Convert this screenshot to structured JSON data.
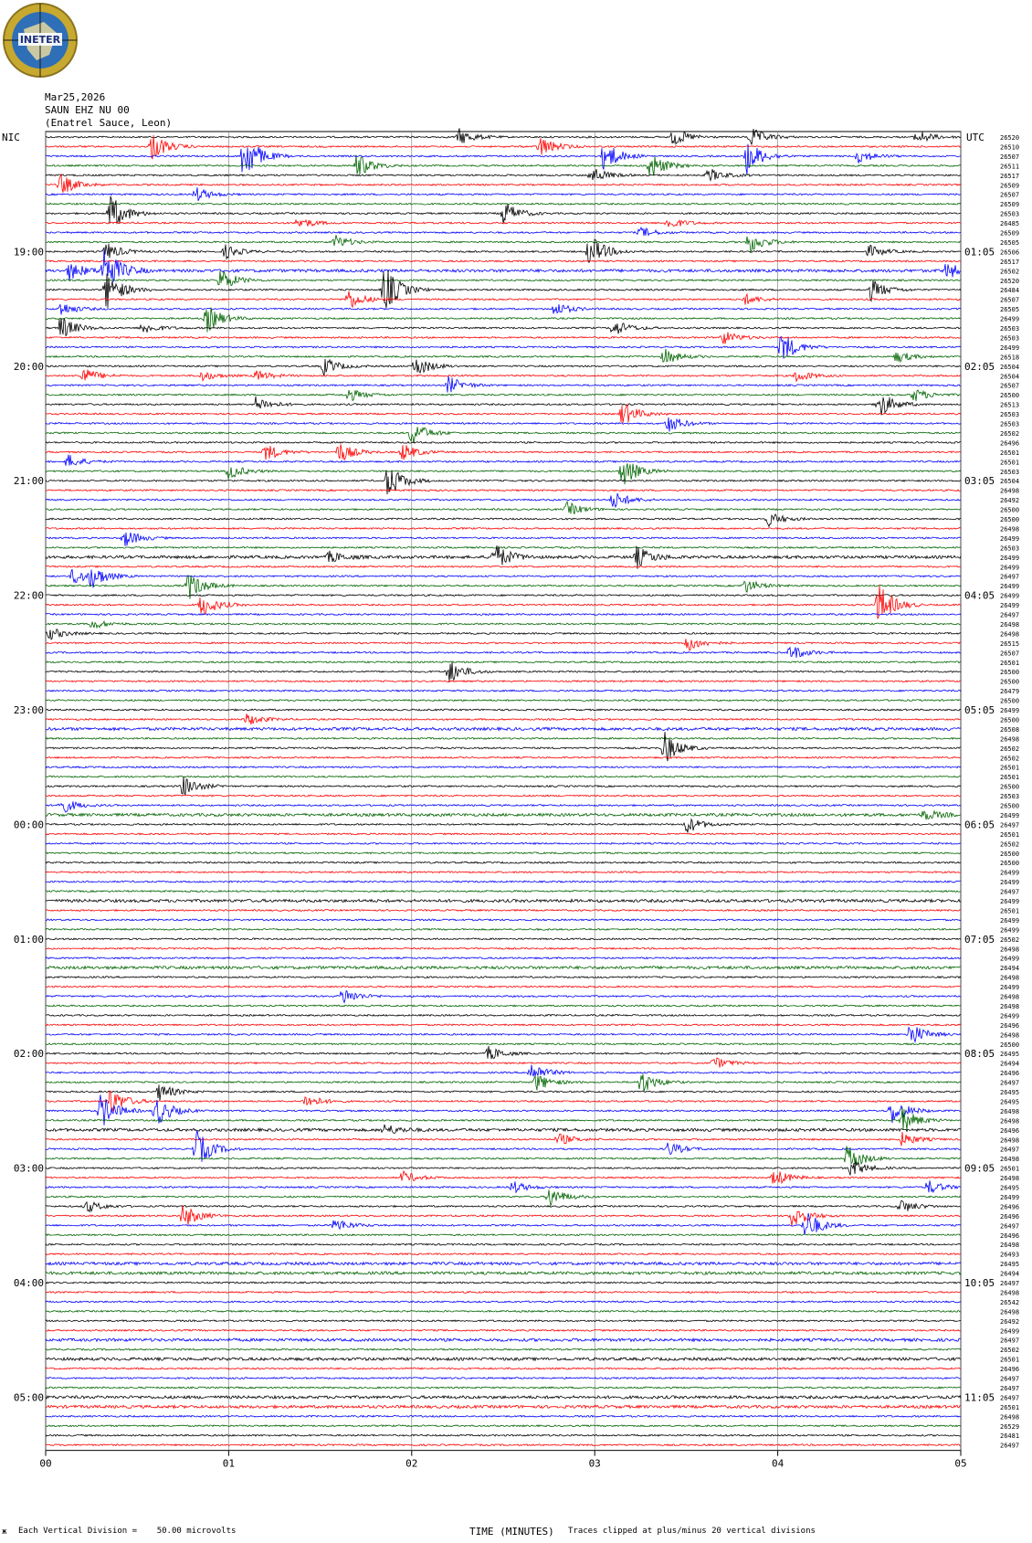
{
  "logo": {
    "text": "INETER",
    "colors": {
      "ring": "#c8a92f",
      "inner": "#2f6fb7",
      "land": "#e6d9a0"
    }
  },
  "header": {
    "date": "Mar25,2026",
    "station": "SAUN EHZ NU 00",
    "location": "(Enatrel Sauce, Leon)"
  },
  "chart_data": {
    "type": "line",
    "description_kind": "helicorder",
    "left_axis_label": "NIC",
    "right_axis_label": "UTC",
    "x": {
      "ticks": [
        "00",
        "01",
        "02",
        "03",
        "04",
        "05"
      ],
      "range": [
        0,
        5
      ],
      "label": "TIME (MINUTES)"
    },
    "left_time_labels": [
      "19:00",
      "20:00",
      "21:00",
      "22:00",
      "23:00",
      "00:00",
      "01:00",
      "02:00",
      "03:00",
      "04:00",
      "05:00"
    ],
    "right_time_labels": [
      "01:05",
      "02:05",
      "03:05",
      "04:05",
      "05:05",
      "06:05",
      "07:05",
      "08:05",
      "09:05",
      "10:05",
      "11:05"
    ],
    "trace_colors": [
      "#000000",
      "#ff0000",
      "#0000ff",
      "#006400"
    ],
    "trace_values": [
      "26520",
      "26510",
      "26507",
      "26511",
      "26517",
      "26509",
      "26507",
      "26509",
      "26503",
      "26485",
      "26509",
      "26505",
      "26506",
      "26517",
      "26502",
      "26520",
      "26484",
      "26507",
      "26505",
      "26499",
      "26503",
      "26503",
      "26499",
      "26518",
      "26504",
      "26504",
      "26507",
      "26500",
      "26513",
      "26503",
      "26503",
      "26502",
      "26496",
      "26501",
      "26501",
      "26503",
      "26504",
      "26498",
      "26492",
      "26500",
      "26500",
      "26498",
      "26499",
      "26503",
      "26499",
      "26499",
      "26497",
      "26499",
      "26499",
      "26499",
      "26497",
      "26498",
      "26498",
      "26515",
      "26507",
      "26501",
      "26500",
      "26500",
      "26479",
      "26500",
      "26499",
      "26500",
      "26508",
      "26498",
      "26502",
      "26502",
      "26501",
      "26501",
      "26500",
      "26503",
      "26500",
      "26499",
      "26497",
      "26501",
      "26502",
      "26500",
      "26500",
      "26499",
      "26499",
      "26497",
      "26499",
      "26501",
      "26499",
      "26499",
      "26502",
      "26498",
      "26499",
      "26494",
      "26498",
      "26499",
      "26498",
      "26498",
      "26499",
      "26496",
      "26498",
      "26500",
      "26495",
      "26494",
      "26496",
      "26497",
      "26495",
      "26495",
      "26498",
      "26498",
      "26496",
      "26498",
      "26497",
      "26498",
      "26501",
      "26498",
      "26495",
      "26499",
      "26496",
      "26496",
      "26497",
      "26496",
      "26498",
      "26493",
      "26495",
      "26494",
      "26497",
      "26498",
      "26542",
      "26498",
      "26492",
      "26499",
      "26497",
      "26502",
      "26501",
      "26496",
      "26497",
      "26497",
      "26497",
      "26501",
      "26498",
      "26529",
      "26481",
      "26497"
    ],
    "events": [
      {
        "line": 0,
        "t": 2.26,
        "amp": 9
      },
      {
        "line": 0,
        "t": 3.43,
        "amp": 10
      },
      {
        "line": 0,
        "t": 3.85,
        "amp": 11
      },
      {
        "line": 0,
        "t": 4.76,
        "amp": 8
      },
      {
        "line": 1,
        "t": 0.58,
        "amp": 16
      },
      {
        "line": 1,
        "t": 2.7,
        "amp": 12
      },
      {
        "line": 2,
        "t": 1.08,
        "amp": 30
      },
      {
        "line": 2,
        "t": 3.05,
        "amp": 18
      },
      {
        "line": 2,
        "t": 3.83,
        "amp": 20
      },
      {
        "line": 2,
        "t": 4.44,
        "amp": 8
      },
      {
        "line": 3,
        "t": 1.7,
        "amp": 14
      },
      {
        "line": 3,
        "t": 3.3,
        "amp": 16
      },
      {
        "line": 4,
        "t": 2.98,
        "amp": 10
      },
      {
        "line": 4,
        "t": 3.62,
        "amp": 8
      },
      {
        "line": 5,
        "t": 0.08,
        "amp": 12
      },
      {
        "line": 6,
        "t": 0.82,
        "amp": 8
      },
      {
        "line": 8,
        "t": 0.35,
        "amp": 22
      },
      {
        "line": 8,
        "t": 2.5,
        "amp": 14
      },
      {
        "line": 9,
        "t": 1.38,
        "amp": 7
      },
      {
        "line": 9,
        "t": 3.4,
        "amp": 7
      },
      {
        "line": 10,
        "t": 3.25,
        "amp": 6
      },
      {
        "line": 11,
        "t": 1.58,
        "amp": 8
      },
      {
        "line": 11,
        "t": 3.84,
        "amp": 13
      },
      {
        "line": 12,
        "t": 0.33,
        "amp": 10
      },
      {
        "line": 12,
        "t": 0.98,
        "amp": 8
      },
      {
        "line": 12,
        "t": 2.97,
        "amp": 20
      },
      {
        "line": 12,
        "t": 4.5,
        "amp": 7
      },
      {
        "line": 14,
        "t": 0.32,
        "amp": 28
      },
      {
        "line": 14,
        "t": 0.13,
        "amp": 10
      },
      {
        "line": 14,
        "t": 4.92,
        "amp": 9
      },
      {
        "line": 15,
        "t": 0.95,
        "amp": 14
      },
      {
        "line": 16,
        "t": 0.33,
        "amp": 22
      },
      {
        "line": 16,
        "t": 1.85,
        "amp": 28
      },
      {
        "line": 16,
        "t": 4.51,
        "amp": 12
      },
      {
        "line": 17,
        "t": 1.65,
        "amp": 12
      },
      {
        "line": 17,
        "t": 3.82,
        "amp": 6
      },
      {
        "line": 18,
        "t": 0.08,
        "amp": 8
      },
      {
        "line": 18,
        "t": 2.78,
        "amp": 8
      },
      {
        "line": 19,
        "t": 0.88,
        "amp": 16
      },
      {
        "line": 20,
        "t": 0.08,
        "amp": 14
      },
      {
        "line": 20,
        "t": 0.53,
        "amp": 7
      },
      {
        "line": 20,
        "t": 3.1,
        "amp": 10
      },
      {
        "line": 21,
        "t": 3.7,
        "amp": 8
      },
      {
        "line": 22,
        "t": 4.02,
        "amp": 18
      },
      {
        "line": 23,
        "t": 3.38,
        "amp": 9
      },
      {
        "line": 23,
        "t": 4.65,
        "amp": 7
      },
      {
        "line": 24,
        "t": 1.52,
        "amp": 10
      },
      {
        "line": 24,
        "t": 2.02,
        "amp": 12
      },
      {
        "line": 25,
        "t": 0.2,
        "amp": 10
      },
      {
        "line": 25,
        "t": 0.85,
        "amp": 6
      },
      {
        "line": 25,
        "t": 1.15,
        "amp": 6
      },
      {
        "line": 25,
        "t": 4.1,
        "amp": 7
      },
      {
        "line": 26,
        "t": 2.2,
        "amp": 10
      },
      {
        "line": 27,
        "t": 1.65,
        "amp": 8
      },
      {
        "line": 27,
        "t": 4.74,
        "amp": 8
      },
      {
        "line": 28,
        "t": 1.15,
        "amp": 9
      },
      {
        "line": 28,
        "t": 4.55,
        "amp": 16
      },
      {
        "line": 29,
        "t": 3.15,
        "amp": 14
      },
      {
        "line": 30,
        "t": 3.4,
        "amp": 10
      },
      {
        "line": 31,
        "t": 2.0,
        "amp": 14
      },
      {
        "line": 33,
        "t": 1.2,
        "amp": 10
      },
      {
        "line": 33,
        "t": 1.6,
        "amp": 12
      },
      {
        "line": 33,
        "t": 1.95,
        "amp": 10
      },
      {
        "line": 34,
        "t": 0.12,
        "amp": 8
      },
      {
        "line": 35,
        "t": 1.0,
        "amp": 9
      },
      {
        "line": 35,
        "t": 3.15,
        "amp": 18
      },
      {
        "line": 36,
        "t": 1.87,
        "amp": 20
      },
      {
        "line": 38,
        "t": 3.1,
        "amp": 10
      },
      {
        "line": 39,
        "t": 2.85,
        "amp": 8
      },
      {
        "line": 40,
        "t": 3.95,
        "amp": 8
      },
      {
        "line": 42,
        "t": 0.43,
        "amp": 10
      },
      {
        "line": 44,
        "t": 1.55,
        "amp": 6
      },
      {
        "line": 44,
        "t": 2.45,
        "amp": 16
      },
      {
        "line": 44,
        "t": 3.23,
        "amp": 12
      },
      {
        "line": 46,
        "t": 0.15,
        "amp": 10
      },
      {
        "line": 46,
        "t": 0.25,
        "amp": 12
      },
      {
        "line": 47,
        "t": 0.78,
        "amp": 16
      },
      {
        "line": 47,
        "t": 3.82,
        "amp": 8
      },
      {
        "line": 49,
        "t": 0.85,
        "amp": 14
      },
      {
        "line": 49,
        "t": 4.55,
        "amp": 24
      },
      {
        "line": 51,
        "t": 0.25,
        "amp": 6
      },
      {
        "line": 52,
        "t": 0.02,
        "amp": 7
      },
      {
        "line": 53,
        "t": 3.5,
        "amp": 10
      },
      {
        "line": 54,
        "t": 4.07,
        "amp": 9
      },
      {
        "line": 56,
        "t": 2.2,
        "amp": 14
      },
      {
        "line": 61,
        "t": 1.1,
        "amp": 7
      },
      {
        "line": 64,
        "t": 3.38,
        "amp": 18
      },
      {
        "line": 68,
        "t": 0.75,
        "amp": 12
      },
      {
        "line": 70,
        "t": 0.08,
        "amp": 10
      },
      {
        "line": 71,
        "t": 4.8,
        "amp": 6
      },
      {
        "line": 72,
        "t": 3.5,
        "amp": 10
      },
      {
        "line": 90,
        "t": 1.62,
        "amp": 10
      },
      {
        "line": 94,
        "t": 4.72,
        "amp": 14
      },
      {
        "line": 96,
        "t": 2.42,
        "amp": 8
      },
      {
        "line": 97,
        "t": 3.65,
        "amp": 7
      },
      {
        "line": 98,
        "t": 2.65,
        "amp": 12
      },
      {
        "line": 99,
        "t": 2.68,
        "amp": 10
      },
      {
        "line": 99,
        "t": 3.25,
        "amp": 14
      },
      {
        "line": 100,
        "t": 0.62,
        "amp": 10
      },
      {
        "line": 101,
        "t": 1.42,
        "amp": 8
      },
      {
        "line": 101,
        "t": 0.35,
        "amp": 16
      },
      {
        "line": 102,
        "t": 0.3,
        "amp": 20
      },
      {
        "line": 102,
        "t": 0.6,
        "amp": 18
      },
      {
        "line": 102,
        "t": 4.62,
        "amp": 16
      },
      {
        "line": 103,
        "t": 4.68,
        "amp": 14
      },
      {
        "line": 104,
        "t": 1.85,
        "amp": 6
      },
      {
        "line": 105,
        "t": 2.8,
        "amp": 7
      },
      {
        "line": 105,
        "t": 4.68,
        "amp": 8
      },
      {
        "line": 106,
        "t": 0.82,
        "amp": 22
      },
      {
        "line": 106,
        "t": 3.4,
        "amp": 8
      },
      {
        "line": 107,
        "t": 4.38,
        "amp": 16
      },
      {
        "line": 108,
        "t": 4.4,
        "amp": 10
      },
      {
        "line": 109,
        "t": 3.98,
        "amp": 10
      },
      {
        "line": 109,
        "t": 1.95,
        "amp": 7
      },
      {
        "line": 110,
        "t": 2.55,
        "amp": 7
      },
      {
        "line": 110,
        "t": 4.82,
        "amp": 8
      },
      {
        "line": 111,
        "t": 2.75,
        "amp": 12
      },
      {
        "line": 112,
        "t": 0.22,
        "amp": 7
      },
      {
        "line": 112,
        "t": 4.67,
        "amp": 8
      },
      {
        "line": 113,
        "t": 0.75,
        "amp": 14
      },
      {
        "line": 113,
        "t": 4.08,
        "amp": 14
      },
      {
        "line": 114,
        "t": 4.15,
        "amp": 18
      },
      {
        "line": 114,
        "t": 1.58,
        "amp": 8
      }
    ],
    "noisy_lines": [
      14,
      44,
      62,
      71,
      80,
      87,
      104,
      118,
      119,
      126,
      128,
      132,
      133
    ]
  },
  "footer": {
    "scale_note": "Each Vertical Division =    50.00 microvolts",
    "clip_note": "Traces clipped at plus/minus 20 vertical divisions",
    "corner_mark": "ж"
  }
}
